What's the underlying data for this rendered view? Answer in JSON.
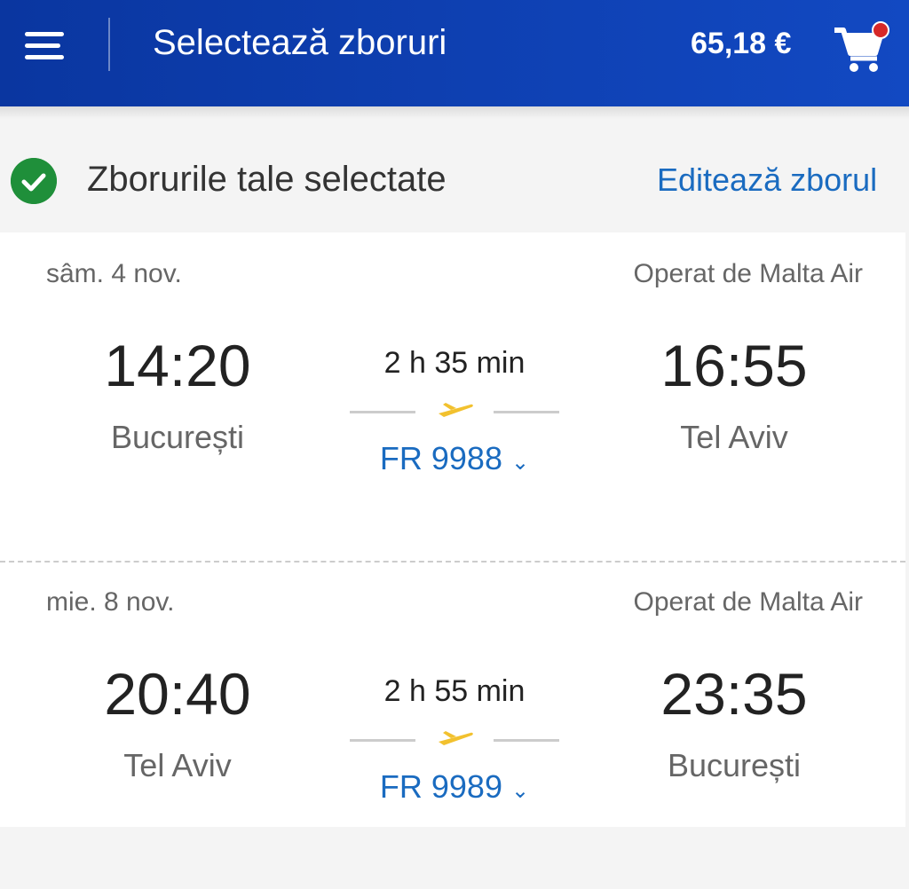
{
  "header": {
    "title": "Selectează zboruri",
    "price": "65,18 €",
    "icons": [
      "menu-icon",
      "cart-icon"
    ],
    "brand_color": "#0a36a0"
  },
  "selected": {
    "label": "Zborurile tale selectate",
    "edit_label": "Editează zborul"
  },
  "flights": [
    {
      "date": "sâm. 4 nov.",
      "operator": "Operat de Malta Air",
      "depart_time": "14:20",
      "depart_city": "București",
      "duration": "2 h 35 min",
      "flight_no": "FR 9988",
      "arrive_time": "16:55",
      "arrive_city": "Tel Aviv"
    },
    {
      "date": "mie. 8 nov.",
      "operator": "Operat de Malta Air",
      "depart_time": "20:40",
      "depart_city": "Tel Aviv",
      "duration": "2 h 55 min",
      "flight_no": "FR 9989",
      "arrive_time": "23:35",
      "arrive_city": "București"
    }
  ]
}
